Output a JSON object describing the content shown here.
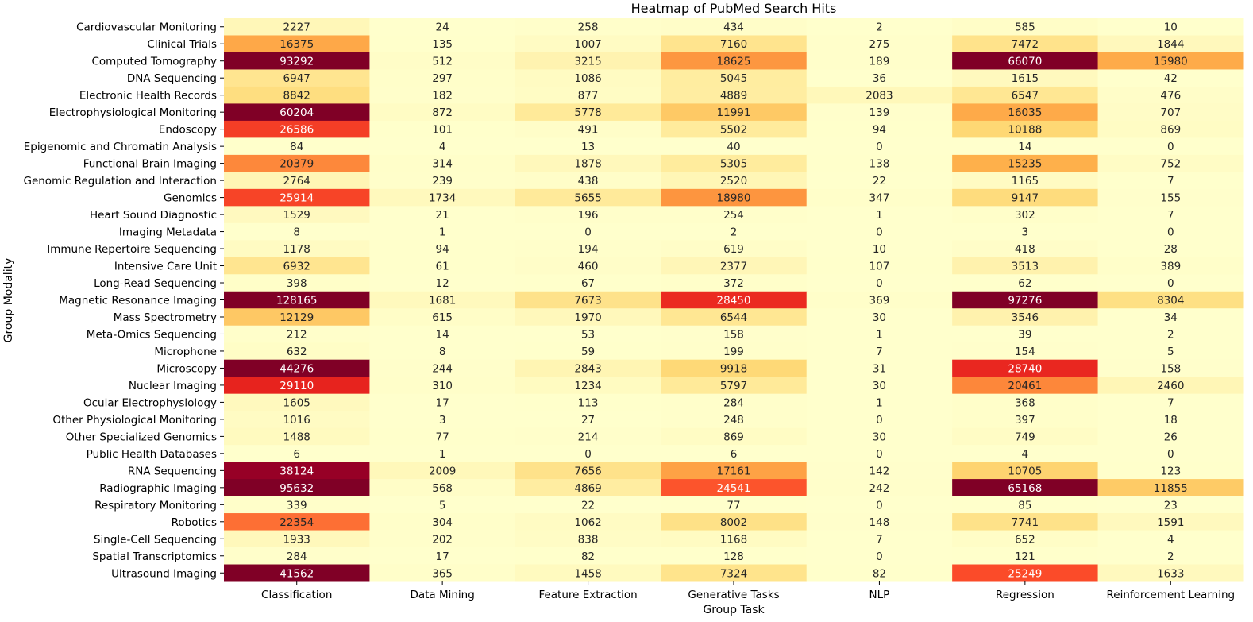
{
  "chart_data": {
    "type": "heatmap",
    "title": "Heatmap of PubMed Search Hits",
    "xlabel": "Group Task",
    "ylabel": "Group Modality",
    "colormap": "YlOrRd",
    "color_range": [
      0,
      40000
    ],
    "colors": [
      "#ffffcc",
      "#ffeda0",
      "#fed976",
      "#feb24c",
      "#fd8d3c",
      "#fc4e2a",
      "#e31a1c",
      "#bd0026",
      "#800026"
    ],
    "columns": [
      "Classification",
      "Data Mining",
      "Feature Extraction",
      "Generative Tasks",
      "NLP",
      "Regression",
      "Reinforcement Learning"
    ],
    "rows": [
      "Cardiovascular Monitoring",
      "Clinical Trials",
      "Computed Tomography",
      "DNA Sequencing",
      "Electronic Health Records",
      "Electrophysiological Monitoring",
      "Endoscopy",
      "Epigenomic and Chromatin Analysis",
      "Functional Brain Imaging",
      "Genomic Regulation and Interaction",
      "Genomics",
      "Heart Sound Diagnostic",
      "Imaging Metadata",
      "Immune Repertoire Sequencing",
      "Intensive Care Unit",
      "Long-Read Sequencing",
      "Magnetic Resonance Imaging",
      "Mass Spectrometry",
      "Meta-Omics Sequencing",
      "Microphone",
      "Microscopy",
      "Nuclear Imaging",
      "Ocular Electrophysiology",
      "Other Physiological Monitoring",
      "Other Specialized Genomics",
      "Public Health Databases",
      "RNA Sequencing",
      "Radiographic Imaging",
      "Respiratory Monitoring",
      "Robotics",
      "Single-Cell Sequencing",
      "Spatial Transcriptomics",
      "Ultrasound Imaging"
    ],
    "values": [
      [
        2227,
        24,
        258,
        434,
        2,
        585,
        10
      ],
      [
        16375,
        135,
        1007,
        7160,
        275,
        7472,
        1844
      ],
      [
        93292,
        512,
        3215,
        18625,
        189,
        66070,
        15980
      ],
      [
        6947,
        297,
        1086,
        5045,
        36,
        1615,
        42
      ],
      [
        8842,
        182,
        877,
        4889,
        2083,
        6547,
        476
      ],
      [
        60204,
        872,
        5778,
        11991,
        139,
        16035,
        707
      ],
      [
        26586,
        101,
        491,
        5502,
        94,
        10188,
        869
      ],
      [
        84,
        4,
        13,
        40,
        0,
        14,
        0
      ],
      [
        20379,
        314,
        1878,
        5305,
        138,
        15235,
        752
      ],
      [
        2764,
        239,
        438,
        2520,
        22,
        1165,
        7
      ],
      [
        25914,
        1734,
        5655,
        18980,
        347,
        9147,
        155
      ],
      [
        1529,
        21,
        196,
        254,
        1,
        302,
        7
      ],
      [
        8,
        1,
        0,
        2,
        0,
        3,
        0
      ],
      [
        1178,
        94,
        194,
        619,
        10,
        418,
        28
      ],
      [
        6932,
        61,
        460,
        2377,
        107,
        3513,
        389
      ],
      [
        398,
        12,
        67,
        372,
        0,
        62,
        0
      ],
      [
        128165,
        1681,
        7673,
        28450,
        369,
        97276,
        8304
      ],
      [
        12129,
        615,
        1970,
        6544,
        30,
        3546,
        34
      ],
      [
        212,
        14,
        53,
        158,
        1,
        39,
        2
      ],
      [
        632,
        8,
        59,
        199,
        7,
        154,
        5
      ],
      [
        44276,
        244,
        2843,
        9918,
        31,
        28740,
        158
      ],
      [
        29110,
        310,
        1234,
        5797,
        30,
        20461,
        2460
      ],
      [
        1605,
        17,
        113,
        284,
        1,
        368,
        7
      ],
      [
        1016,
        3,
        27,
        248,
        0,
        397,
        18
      ],
      [
        1488,
        77,
        214,
        869,
        30,
        749,
        26
      ],
      [
        6,
        1,
        0,
        6,
        0,
        4,
        0
      ],
      [
        38124,
        2009,
        7656,
        17161,
        142,
        10705,
        123
      ],
      [
        95632,
        568,
        4869,
        24541,
        242,
        65168,
        11855
      ],
      [
        339,
        5,
        22,
        77,
        0,
        85,
        23
      ],
      [
        22354,
        304,
        1062,
        8002,
        148,
        7741,
        1591
      ],
      [
        1933,
        202,
        838,
        1168,
        7,
        652,
        4
      ],
      [
        284,
        17,
        82,
        128,
        0,
        121,
        2
      ],
      [
        41562,
        365,
        1458,
        7324,
        82,
        25249,
        1633
      ]
    ]
  }
}
